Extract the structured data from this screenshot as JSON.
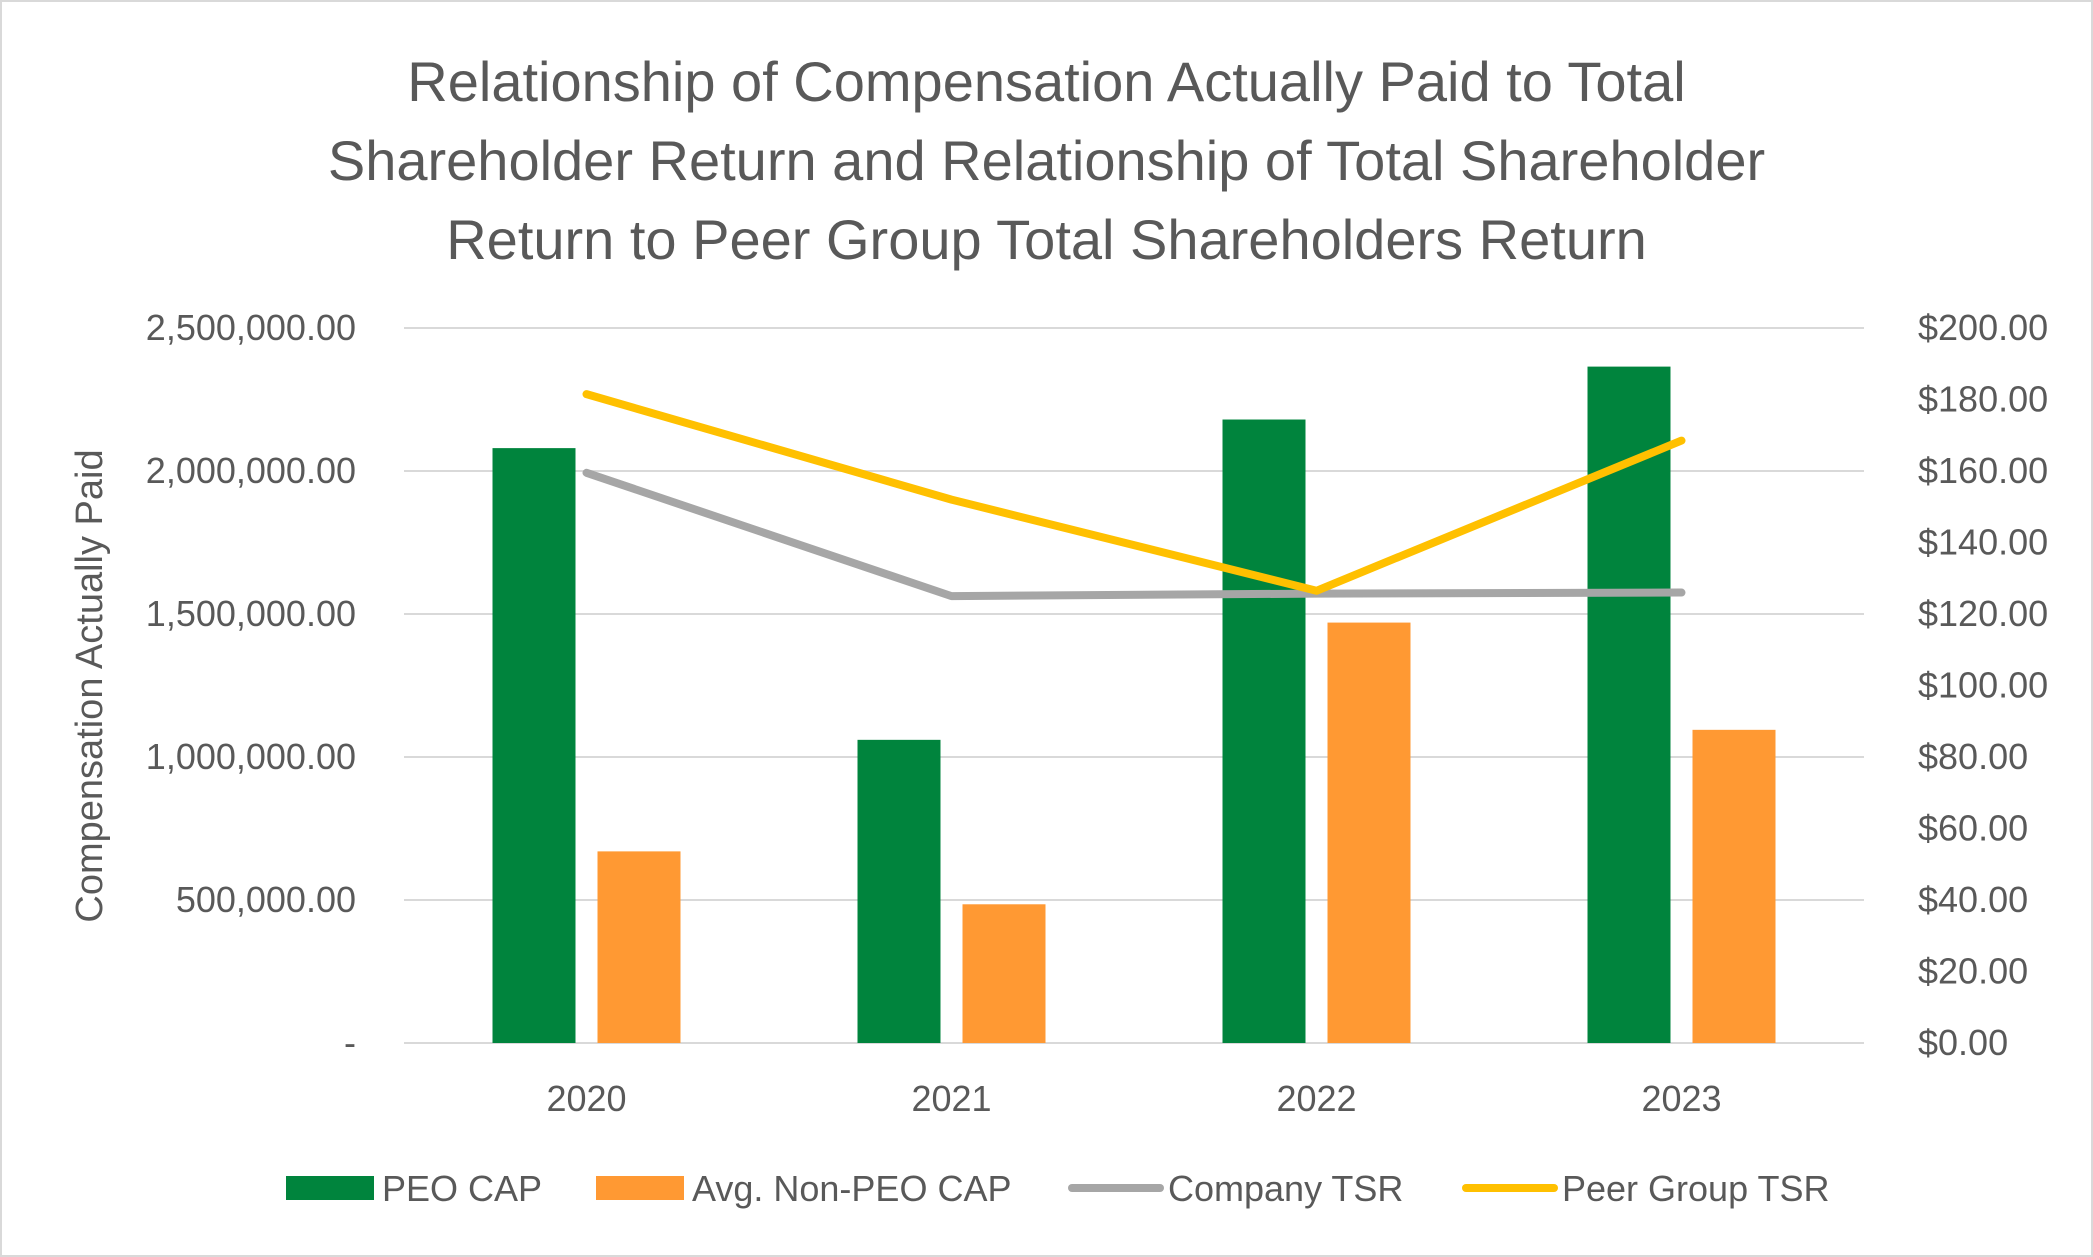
{
  "chart_data": {
    "type": "bar",
    "title": "Relationship of  Compensation Actually Paid to Total\nShareholder Return and Relationship of Total Shareholder\nReturn to Peer Group Total Shareholders Return",
    "categories": [
      "2020",
      "2021",
      "2022",
      "2023"
    ],
    "xlabel": "",
    "ylabel": "Compensation Actually Paid",
    "y2label": "",
    "ylim": [
      0,
      2500000
    ],
    "y2lim": [
      0,
      200
    ],
    "yticks": [
      0,
      500000,
      1000000,
      1500000,
      2000000,
      2500000
    ],
    "ytick_labels": [
      "-",
      "500,000.00",
      "1,000,000.00",
      "1,500,000.00",
      "2,000,000.00",
      "2,500,000.00"
    ],
    "y2ticks": [
      0,
      20,
      40,
      60,
      80,
      100,
      120,
      140,
      160,
      180,
      200
    ],
    "y2tick_labels": [
      "$0.00",
      "$20.00",
      "$40.00",
      "$60.00",
      "$80.00",
      "$100.00",
      "$120.00",
      "$140.00",
      "$160.00",
      "$180.00",
      "$200.00"
    ],
    "grid": true,
    "legend_position": "bottom",
    "series": [
      {
        "name": "PEO CAP",
        "kind": "bar",
        "axis": "left",
        "color": "#00843d",
        "values": [
          2080000,
          1060000,
          2180000,
          2365000
        ]
      },
      {
        "name": "Avg. Non-PEO CAP",
        "kind": "bar",
        "axis": "left",
        "color": "#ff9933",
        "values": [
          670000,
          485000,
          1470000,
          1095000
        ]
      },
      {
        "name": "Company TSR",
        "kind": "line",
        "axis": "right",
        "color": "#a6a6a6",
        "values": [
          159.5,
          125.0,
          125.7,
          126.0
        ]
      },
      {
        "name": "Peer Group TSR",
        "kind": "line",
        "axis": "right",
        "color": "#ffc000",
        "values": [
          181.5,
          152.0,
          126.5,
          168.5
        ]
      }
    ]
  }
}
